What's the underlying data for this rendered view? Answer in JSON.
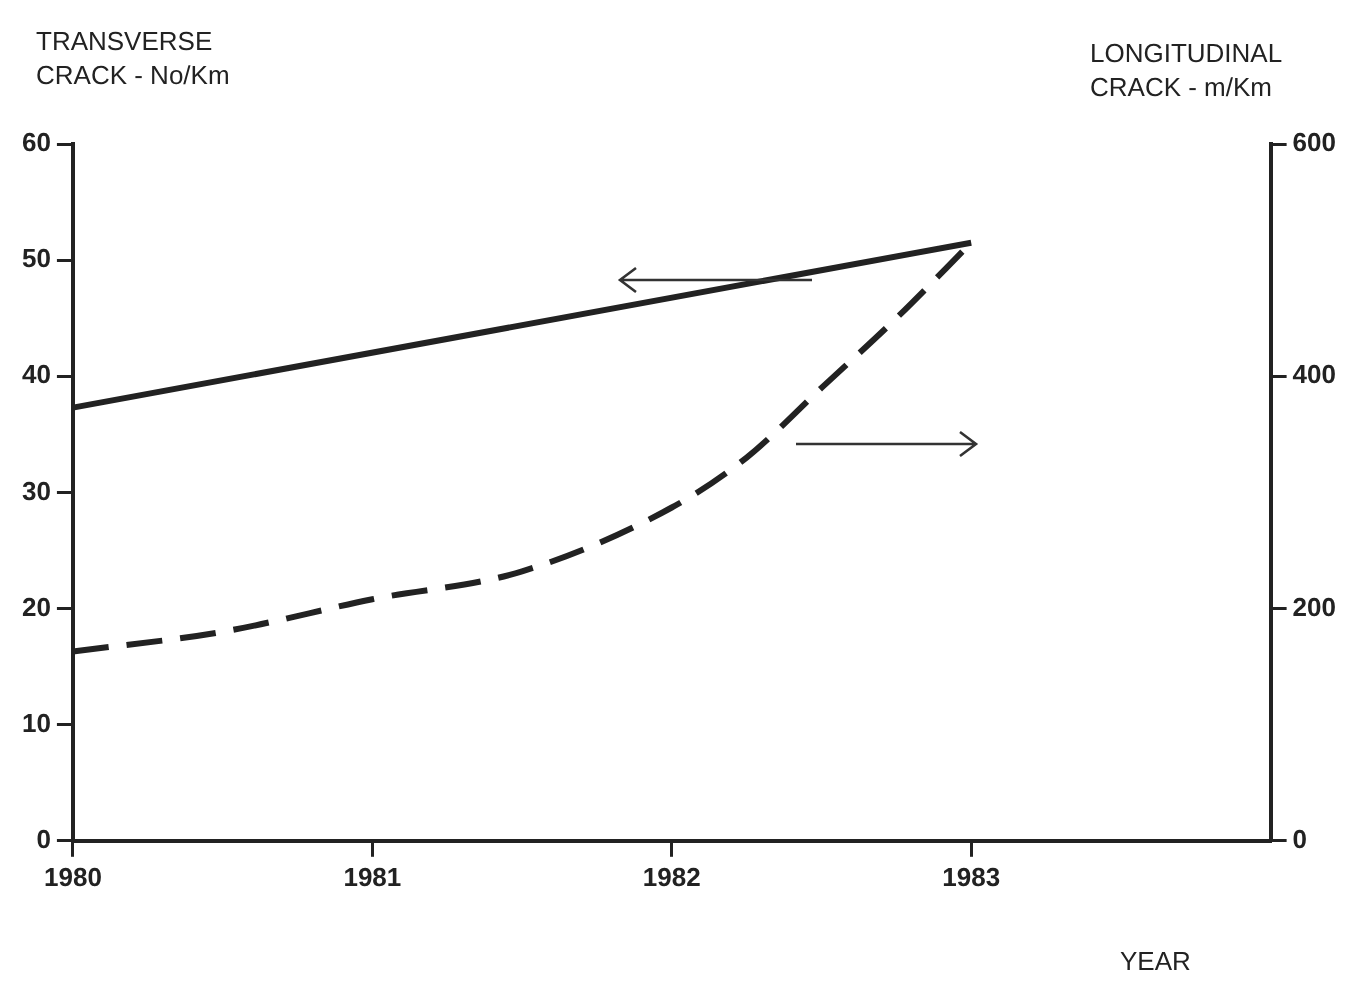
{
  "chart_data": {
    "type": "line",
    "ylabel": "TRANSVERSE CRACK - No/Km",
    "y2label": "LONGITUDINAL CRACK - m/Km",
    "xlabel": "YEAR",
    "series": [
      {
        "type": "line",
        "color": "#222222",
        "line_style": "solid",
        "x": [
          1980,
          1983
        ],
        "values": [
          37.3,
          51.5
        ]
      },
      {
        "type": "line",
        "color": "#222222",
        "line_style": "dashed",
        "axis": "y2",
        "x": [
          1980,
          1980.5,
          1981,
          1981.5,
          1982,
          1982.25,
          1982.5,
          1982.75,
          1983
        ],
        "values": [
          163,
          180,
          208,
          232,
          287,
          330,
          390,
          450,
          515
        ]
      }
    ],
    "xlim": [
      1980,
      1984
    ],
    "xticks": [
      1980,
      1981,
      1982,
      1983
    ],
    "ylim": [
      0,
      60
    ],
    "yticks": [
      0,
      10,
      20,
      30,
      40,
      50,
      60
    ],
    "y2lim": [
      0,
      600
    ],
    "y2ticks": [
      0,
      200,
      400,
      600
    ],
    "grid": false,
    "legend": false,
    "marker": "none"
  }
}
